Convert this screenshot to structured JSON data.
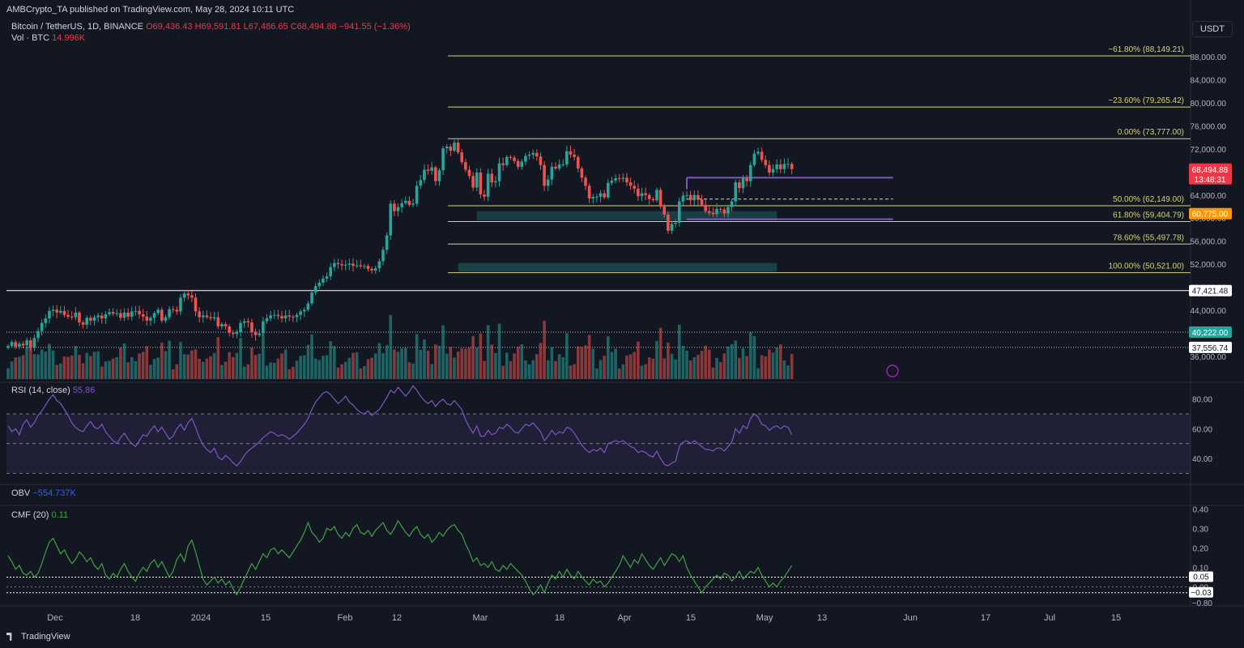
{
  "header": {
    "published": "AMBCrypto_TA published on TradingView.com, May 28, 2024 10:11 UTC",
    "symbol": "Bitcoin / TetherUS, 1D, BINANCE",
    "ohlc": "O69,436.43 H69,591.81 L67,486.65 C68,494.88 −941.55 (−1.36%)",
    "volume_label": "Vol · BTC",
    "volume_value": "14.996K",
    "currency": "USDT"
  },
  "indicators": {
    "rsi_label": "RSI (14, close)",
    "rsi_value": "55.86",
    "obv_label": "OBV",
    "obv_value": "−554.737K",
    "cmf_label": "CMF (20)",
    "cmf_value": "0.11"
  },
  "footer": {
    "brand": "TradingView"
  },
  "colors": {
    "up": "#26a69a",
    "down": "#ef5350",
    "fib": "#d5d27a",
    "rsi": "#7e57c2",
    "cmf": "#43a047",
    "bg": "#131722"
  },
  "chart_data": {
    "type": "candlestick",
    "x_ticks": [
      "Dec",
      "18",
      "2024",
      "15",
      "Feb",
      "12",
      "Mar",
      "18",
      "Apr",
      "15",
      "May",
      "13",
      "Jun",
      "17",
      "Jul",
      "15"
    ],
    "price_ticks": [
      "88,000.00",
      "84,000.00",
      "80,000.00",
      "76,000.00",
      "72,000.00",
      "68,000.00",
      "64,000.00",
      "60,000.00",
      "56,000.00",
      "52,000.00",
      "48,000.00",
      "44,000.00",
      "40,000.00",
      "36,000.00"
    ],
    "ylim": [
      34000,
      90500
    ],
    "fib_levels": [
      {
        "label": "−61.80% (88,149.21)",
        "value": 88149.21
      },
      {
        "label": "−23.60% (79,265.42)",
        "value": 79265.42
      },
      {
        "label": "0.00% (73,777.00)",
        "value": 73777.0
      },
      {
        "label": "50.00% (62,149.00)",
        "value": 62149.0
      },
      {
        "label": "61.80% (59,404.79)",
        "value": 59404.79
      },
      {
        "label": "78.60% (55,497.78)",
        "value": 55497.78
      },
      {
        "label": "100.00% (50,521.00)",
        "value": 50521.0
      }
    ],
    "price_labels": [
      {
        "text": "68,494.88",
        "sub": "13:48:31",
        "value": 68494.88,
        "color": "#f23645"
      },
      {
        "text": "60,775.00",
        "value": 60775,
        "color": "#ff9800"
      },
      {
        "text": "47,421.48",
        "value": 47421.48,
        "color": "#ffffff"
      },
      {
        "text": "40,222.00",
        "value": 40222,
        "color": "#26a69a"
      },
      {
        "text": "37,556.74",
        "value": 37556.74,
        "color": "#ffffff"
      }
    ],
    "closes": [
      37800,
      38500,
      37700,
      38200,
      37900,
      38800,
      37600,
      39200,
      40400,
      41800,
      42600,
      43900,
      44100,
      43600,
      43900,
      43200,
      42900,
      42800,
      43600,
      41900,
      41500,
      42700,
      42200,
      42800,
      43100,
      42600,
      43300,
      43700,
      43400,
      43500,
      42700,
      43600,
      42900,
      43800,
      43900,
      43300,
      42900,
      42200,
      42700,
      43500,
      44100,
      42200,
      42800,
      44200,
      44100,
      43800,
      46200,
      46900,
      46600,
      46200,
      43800,
      42800,
      43100,
      42800,
      42600,
      42800,
      41200,
      41600,
      41200,
      40100,
      39900,
      40200,
      41800,
      42100,
      41900,
      40200,
      39700,
      40000,
      42100,
      42600,
      43100,
      43200,
      43000,
      42600,
      43100,
      42900,
      42800,
      43200,
      43800,
      44100,
      45200,
      47100,
      48200,
      48800,
      49500,
      49900,
      51500,
      52200,
      52000,
      51800,
      51900,
      52100,
      51700,
      51800,
      51600,
      51700,
      51200,
      50900,
      51300,
      52500,
      54500,
      57000,
      62500,
      61200,
      61900,
      62600,
      63000,
      62300,
      62500,
      65600,
      66600,
      68400,
      68200,
      68800,
      66400,
      68300,
      72100,
      72400,
      71700,
      73100,
      71400,
      69700,
      68400,
      67300,
      65300,
      67900,
      64100,
      63700,
      67700,
      66200,
      66400,
      69500,
      69200,
      70600,
      70500,
      69900,
      68900,
      69800,
      70800,
      71000,
      71300,
      70700,
      69200,
      65600,
      66700,
      68900,
      68600,
      69300,
      69300,
      71600,
      71000,
      70600,
      68600,
      67000,
      65600,
      63400,
      63700,
      63700,
      64300,
      63600,
      66100,
      66500,
      66900,
      66800,
      67000,
      66200,
      65600,
      65100,
      63800,
      64300,
      64000,
      63300,
      63100,
      64900,
      62000,
      60600,
      57800,
      59000,
      59200,
      62900,
      63900,
      64000,
      63100,
      64000,
      63200,
      62300,
      61200,
      60900,
      60700,
      61600,
      61500,
      60800,
      61900,
      62900,
      66200,
      65200,
      66900,
      66400,
      69200,
      71200,
      71500,
      70100,
      69200,
      67900,
      68500,
      69300,
      68500,
      69400,
      69400,
      68500
    ],
    "rsi_ylim": [
      28,
      88
    ],
    "rsi_ticks": [
      80,
      60,
      40
    ],
    "rsi_band": [
      70,
      30
    ],
    "rsi": [
      62,
      58,
      60,
      56,
      63,
      66,
      61,
      64,
      69,
      72,
      76,
      80,
      83,
      79,
      77,
      73,
      69,
      64,
      61,
      59,
      58,
      62,
      65,
      61,
      60,
      63,
      58,
      55,
      52,
      50,
      54,
      57,
      53,
      50,
      48,
      52,
      56,
      55,
      59,
      62,
      58,
      61,
      57,
      53,
      55,
      60,
      63,
      59,
      64,
      67,
      61,
      54,
      49,
      46,
      44,
      47,
      41,
      39,
      42,
      40,
      37,
      35,
      38,
      42,
      45,
      47,
      49,
      51,
      54,
      56,
      58,
      57,
      55,
      56,
      55,
      53,
      55,
      57,
      60,
      63,
      67,
      73,
      78,
      81,
      84,
      85,
      83,
      80,
      77,
      79,
      82,
      78,
      76,
      73,
      71,
      70,
      72,
      69,
      71,
      73,
      77,
      81,
      86,
      84,
      88,
      85,
      82,
      85,
      89,
      86,
      82,
      79,
      77,
      79,
      75,
      78,
      80,
      77,
      76,
      79,
      76,
      73,
      66,
      61,
      57,
      62,
      55,
      55,
      59,
      56,
      57,
      61,
      60,
      63,
      61,
      58,
      57,
      60,
      63,
      62,
      64,
      61,
      58,
      52,
      55,
      59,
      56,
      58,
      57,
      61,
      60,
      57,
      53,
      49,
      46,
      44,
      46,
      45,
      47,
      44,
      50,
      51,
      52,
      51,
      52,
      50,
      48,
      47,
      44,
      45,
      44,
      42,
      41,
      45,
      40,
      36,
      35,
      37,
      38,
      48,
      51,
      52,
      50,
      52,
      50,
      48,
      46,
      46,
      45,
      47,
      47,
      45,
      48,
      51,
      60,
      57,
      62,
      60,
      67,
      70,
      68,
      63,
      62,
      59,
      61,
      62,
      60,
      62,
      61,
      56
    ],
    "cmf_ylim": [
      -0.085,
      0.41
    ],
    "cmf_ticks": [
      0.4,
      0.3,
      0.2,
      0.1,
      0.0
    ],
    "cmf_levels": [
      {
        "text": "0.05",
        "value": 0.05
      },
      {
        "text": "−0.03",
        "value": -0.03
      }
    ],
    "cmf": [
      0.16,
      0.13,
      0.09,
      0.11,
      0.07,
      0.06,
      0.08,
      0.05,
      0.07,
      0.12,
      0.18,
      0.23,
      0.25,
      0.21,
      0.17,
      0.19,
      0.15,
      0.12,
      0.14,
      0.18,
      0.16,
      0.13,
      0.15,
      0.11,
      0.09,
      0.12,
      0.06,
      0.04,
      0.07,
      0.05,
      0.09,
      0.12,
      0.08,
      0.05,
      0.03,
      0.07,
      0.1,
      0.08,
      0.12,
      0.14,
      0.1,
      0.13,
      0.09,
      0.05,
      0.08,
      0.14,
      0.17,
      0.13,
      0.21,
      0.24,
      0.18,
      0.11,
      0.04,
      0.01,
      0.03,
      0.05,
      0.02,
      0.04,
      0.01,
      0.03,
      -0.01,
      -0.04,
      0.0,
      0.04,
      0.08,
      0.12,
      0.09,
      0.13,
      0.17,
      0.15,
      0.19,
      0.2,
      0.17,
      0.19,
      0.17,
      0.15,
      0.18,
      0.21,
      0.24,
      0.28,
      0.33,
      0.28,
      0.26,
      0.23,
      0.25,
      0.3,
      0.29,
      0.31,
      0.27,
      0.25,
      0.28,
      0.26,
      0.3,
      0.32,
      0.28,
      0.27,
      0.29,
      0.26,
      0.29,
      0.31,
      0.33,
      0.29,
      0.27,
      0.3,
      0.34,
      0.31,
      0.28,
      0.26,
      0.29,
      0.31,
      0.27,
      0.25,
      0.27,
      0.23,
      0.25,
      0.28,
      0.26,
      0.29,
      0.31,
      0.32,
      0.29,
      0.27,
      0.22,
      0.18,
      0.13,
      0.15,
      0.11,
      0.12,
      0.1,
      0.13,
      0.09,
      0.08,
      0.11,
      0.09,
      0.12,
      0.1,
      0.08,
      0.06,
      0.03,
      -0.01,
      -0.04,
      -0.02,
      0.01,
      -0.03,
      0.02,
      0.06,
      0.04,
      0.08,
      0.05,
      0.09,
      0.06,
      0.04,
      0.08,
      0.05,
      0.03,
      0.01,
      0.04,
      0.02,
      0.03,
      0.0,
      0.02,
      0.05,
      0.08,
      0.11,
      0.16,
      0.13,
      0.1,
      0.14,
      0.12,
      0.17,
      0.14,
      0.11,
      0.09,
      0.12,
      0.15,
      0.11,
      0.14,
      0.17,
      0.16,
      0.13,
      0.16,
      0.1,
      0.06,
      0.03,
      0.0,
      -0.03,
      0.0,
      0.02,
      0.04,
      0.06,
      0.04,
      0.07,
      0.06,
      0.03,
      0.05,
      0.08,
      0.04,
      0.06,
      0.08,
      0.07,
      0.1,
      0.06,
      0.03,
      0.0,
      0.02,
      0.0,
      0.03,
      0.05,
      0.08,
      0.11
    ]
  }
}
